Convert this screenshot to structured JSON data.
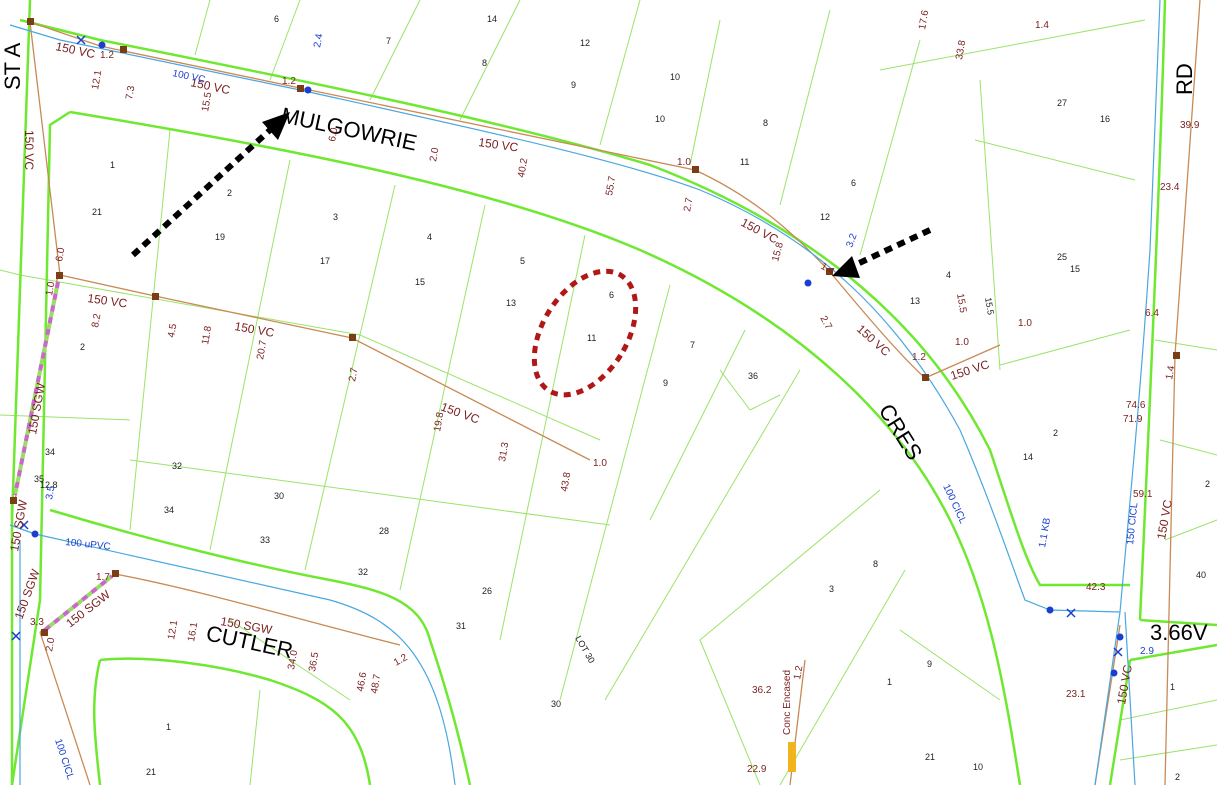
{
  "colors": {
    "road_boundary": "#6ee830",
    "lot_boundary": "#9be36a",
    "sewer_main": "#c98a55",
    "water_main": "#4aa7e0",
    "manhole": "#7a3d16",
    "annotation_brown": "#7a1f1f",
    "annotation_blue": "#1a3fd0",
    "highlight_dotted": "#b01818",
    "sgw_striped_a": "#cc66cc",
    "sgw_striped_b": "#99dd66",
    "encased_marker": "#f2b41c"
  },
  "streets": {
    "mulgowrie": "MULGOWRIE",
    "cres": "CRES",
    "cutler": "CUTLER",
    "rd": "RD",
    "st_partial": "ST A"
  },
  "lots": [
    "6",
    "14",
    "12",
    "10",
    "8",
    "7",
    "8",
    "9",
    "10",
    "11",
    "6",
    "12",
    "4",
    "13",
    "1",
    "2",
    "21",
    "19",
    "3",
    "17",
    "4",
    "15",
    "5",
    "13",
    "6",
    "11",
    "7",
    "9",
    "36",
    "2",
    "34",
    "32",
    "35",
    "30",
    "34",
    "33",
    "28",
    "32",
    "26",
    "31",
    "LOT 30",
    "30",
    "1",
    "21",
    "8",
    "3",
    "1",
    "9",
    "21",
    "10",
    "25",
    "15",
    "27",
    "16",
    "2",
    "14",
    "40",
    "2",
    "1",
    "2",
    "15.5",
    "12.8"
  ],
  "pipe_labels": {
    "vc150_a": "150 VC",
    "vc150_b": "150 VC",
    "vc150_c": "150 VC",
    "vc150_d": "150 VC",
    "vc150_e": "150 VC",
    "vc150_f": "150 VC",
    "vc150_g": "150 VC",
    "vc150_h": "150 VC",
    "vc150_i": "150 VC",
    "vc150_j": "150 VC",
    "vc150_k": "150 VC",
    "vc150_l": "150 VC",
    "sgw150_a": "150 SGW",
    "sgw150_b": "150 SGW",
    "sgw150_c": "150 SGW",
    "sgw150_d": "150 SGW",
    "sgw150_e": "150 SGW",
    "sgw150_f": "150 SGW",
    "cicl150": "150 CICL",
    "vc100": "100 VC",
    "upvc100": "100 uPVC",
    "cicl100_a": "100 CICL",
    "cicl100_b": "100 CICL",
    "kb11": "1.1 KB",
    "big_label": "3.66V",
    "conc": "Conc Encased"
  },
  "brown_values": [
    "1.2",
    "1.2",
    "12.1",
    "7.3",
    "15.5",
    "6.0",
    "2.0",
    "40.2",
    "55.7",
    "2.7",
    "1.0",
    "15.8",
    "1.4",
    "33.8",
    "17.6",
    "1.4",
    "39.9",
    "23.4",
    "6.4",
    "1.4",
    "74.6",
    "71.9",
    "59.1",
    "42.3",
    "23.1",
    "1.0",
    "6.0",
    "1.0",
    "8.2",
    "4.5",
    "11.8",
    "20.7",
    "2.7",
    "19.8",
    "31.3",
    "43.8",
    "1.0",
    "2.7",
    "15.5",
    "1.2",
    "1.0",
    "12.1",
    "16.1",
    "34.0",
    "36.5",
    "46.6",
    "48.7",
    "1.2",
    "1.7",
    "2.0",
    "36.2",
    "1.2",
    "22.9",
    "3.3"
  ],
  "blue_values": [
    "2.4",
    "3.2",
    "2.9",
    "3.5",
    "100 VC"
  ]
}
